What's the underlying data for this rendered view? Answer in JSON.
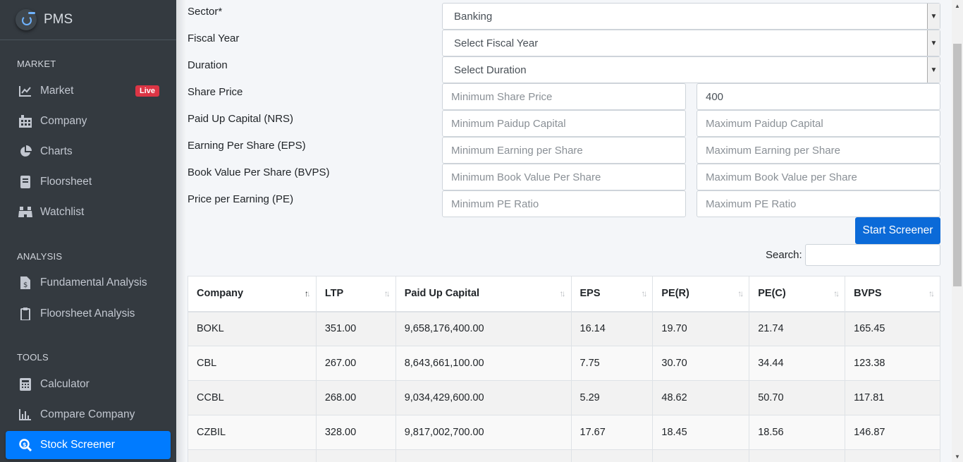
{
  "brand": {
    "name": "PMS"
  },
  "sidebar": {
    "sections": [
      {
        "header": "MARKET"
      },
      {
        "header": "ANALYSIS"
      },
      {
        "header": "TOOLS"
      }
    ],
    "items": [
      {
        "label": "Market",
        "icon": "line-chart-icon",
        "badge": "Live"
      },
      {
        "label": "Company",
        "icon": "building-icon"
      },
      {
        "label": "Charts",
        "icon": "pie-chart-icon"
      },
      {
        "label": "Floorsheet",
        "icon": "book-icon"
      },
      {
        "label": "Watchlist",
        "icon": "binoculars-icon"
      },
      {
        "label": "Fundamental Analysis",
        "icon": "invoice-icon"
      },
      {
        "label": "Floorsheet Analysis",
        "icon": "clipboard-icon"
      },
      {
        "label": "Calculator",
        "icon": "calculator-icon"
      },
      {
        "label": "Compare Company",
        "icon": "bar-chart-icon"
      },
      {
        "label": "Stock Screener",
        "icon": "search-dollar-icon",
        "active": true
      }
    ]
  },
  "form": {
    "sector": {
      "label": "Sector*",
      "value": "Banking"
    },
    "fiscal_year": {
      "label": "Fiscal Year",
      "value": "Select Fiscal Year"
    },
    "duration": {
      "label": "Duration",
      "value": "Select Duration"
    },
    "share_price": {
      "label": "Share Price",
      "min_placeholder": "Minimum Share Price",
      "max_value": "400"
    },
    "paid_up": {
      "label": "Paid Up Capital (NRS)",
      "min_placeholder": "Minimum Paidup Capital",
      "max_placeholder": "Maximum Paidup Capital"
    },
    "eps": {
      "label": "Earning Per Share (EPS)",
      "min_placeholder": "Minimum Earning per Share",
      "max_placeholder": "Maximum Earning per Share"
    },
    "bvps": {
      "label": "Book Value Per Share (BVPS)",
      "min_placeholder": "Minimum Book Value Per Share",
      "max_placeholder": "Maximum Book Value per Share"
    },
    "pe": {
      "label": "Price per Earning (PE)",
      "min_placeholder": "Minimum PE Ratio",
      "max_placeholder": "Maximum PE Ratio"
    },
    "submit_label": "Start Screener"
  },
  "search": {
    "label": "Search:"
  },
  "table": {
    "columns": [
      "Company",
      "LTP",
      "Paid Up Capital",
      "EPS",
      "PE(R)",
      "PE(C)",
      "BVPS"
    ],
    "rows": [
      [
        "BOKL",
        "351.00",
        "9,658,176,400.00",
        "16.14",
        "19.70",
        "21.74",
        "165.45"
      ],
      [
        "CBL",
        "267.00",
        "8,643,661,100.00",
        "7.75",
        "30.70",
        "34.44",
        "123.38"
      ],
      [
        "CCBL",
        "268.00",
        "9,034,429,600.00",
        "5.29",
        "48.62",
        "50.70",
        "117.81"
      ],
      [
        "CZBIL",
        "328.00",
        "9,817,002,700.00",
        "17.67",
        "18.45",
        "18.56",
        "146.87"
      ]
    ]
  }
}
